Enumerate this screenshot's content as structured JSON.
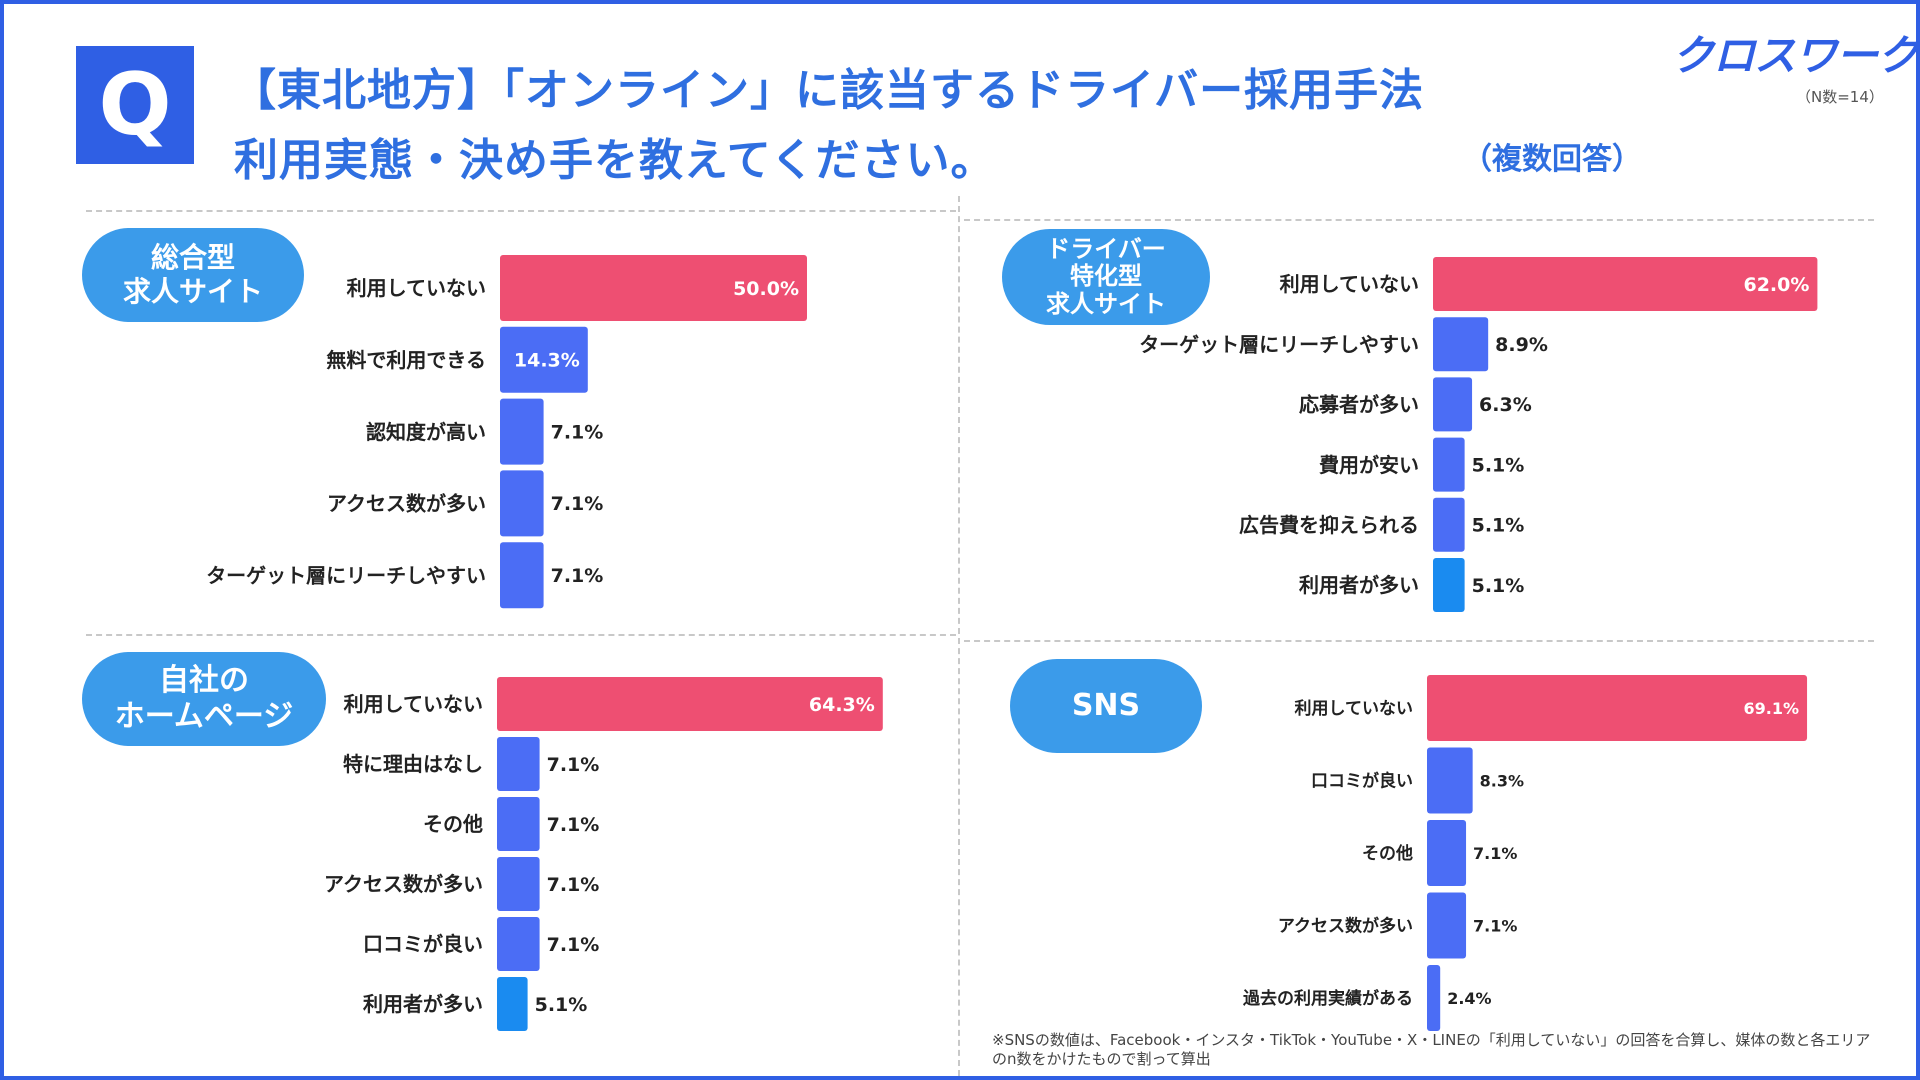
{
  "header": {
    "q_mark": "Q",
    "title_line1": "【東北地方】「オンライン」に該当するドライバー採用手法",
    "title_line2": "利用実態・決め手を教えてください。",
    "multiple_answer": "（複数回答）",
    "logo": "クロスワーク",
    "n_note": "（N数=14）"
  },
  "colors": {
    "frame": "#2f5fe4",
    "pill": "#3b9bea",
    "bar_top": "#ee4f72",
    "bar_blue": "#4b6df5",
    "bar_light": "#1a8bf0"
  },
  "footnote": "※SNSの数値は、Facebook・インスタ・TikTok・YouTube・X・LINEの「利用していない」の回答を合算し、媒体の数と各エリアのn数をかけたもので割って算出",
  "chart_data": [
    {
      "type": "bar",
      "orientation": "horizontal",
      "title": "総合型\n求人サイト",
      "categories": [
        "利用していない",
        "無料で利用できる",
        "認知度が高い",
        "アクセス数が多い",
        "ターゲット層にリーチしやすい"
      ],
      "values": [
        50.0,
        14.3,
        7.1,
        7.1,
        7.1
      ],
      "labels": [
        "50.0%",
        "14.3%",
        "7.1%",
        "7.1%",
        "7.1%"
      ],
      "colors": [
        "#ee4f72",
        "#4b6df5",
        "#4b6df5",
        "#4b6df5",
        "#4b6df5"
      ],
      "unit": "%"
    },
    {
      "type": "bar",
      "orientation": "horizontal",
      "title": "ドライバー\n特化型\n求人サイト",
      "categories": [
        "利用していない",
        "ターゲット層にリーチしやすい",
        "応募者が多い",
        "費用が安い",
        "広告費を抑えられる",
        "利用者が多い"
      ],
      "values": [
        62.0,
        8.9,
        6.3,
        5.1,
        5.1,
        5.1
      ],
      "labels": [
        "62.0%",
        "8.9%",
        "6.3%",
        "5.1%",
        "5.1%",
        "5.1%"
      ],
      "colors": [
        "#ee4f72",
        "#4b6df5",
        "#4b6df5",
        "#4b6df5",
        "#4b6df5",
        "#1a8bf0"
      ],
      "unit": "%"
    },
    {
      "type": "bar",
      "orientation": "horizontal",
      "title": "自社の\nホームページ",
      "categories": [
        "利用していない",
        "特に理由はなし",
        "その他",
        "アクセス数が多い",
        "口コミが良い",
        "利用者が多い"
      ],
      "values": [
        64.3,
        7.1,
        7.1,
        7.1,
        7.1,
        5.1
      ],
      "labels": [
        "64.3%",
        "7.1%",
        "7.1%",
        "7.1%",
        "7.1%",
        "5.1%"
      ],
      "colors": [
        "#ee4f72",
        "#4b6df5",
        "#4b6df5",
        "#4b6df5",
        "#4b6df5",
        "#1a8bf0"
      ],
      "unit": "%"
    },
    {
      "type": "bar",
      "orientation": "horizontal",
      "title": "SNS",
      "categories": [
        "利用していない",
        "口コミが良い",
        "その他",
        "アクセス数が多い",
        "過去の利用実績がある"
      ],
      "values": [
        69.1,
        8.3,
        7.1,
        7.1,
        2.4
      ],
      "labels": [
        "69.1%",
        "8.3%",
        "7.1%",
        "7.1%",
        "2.4%"
      ],
      "colors": [
        "#ee4f72",
        "#4b6df5",
        "#4b6df5",
        "#4b6df5",
        "#4b6df5"
      ],
      "unit": "%"
    }
  ]
}
